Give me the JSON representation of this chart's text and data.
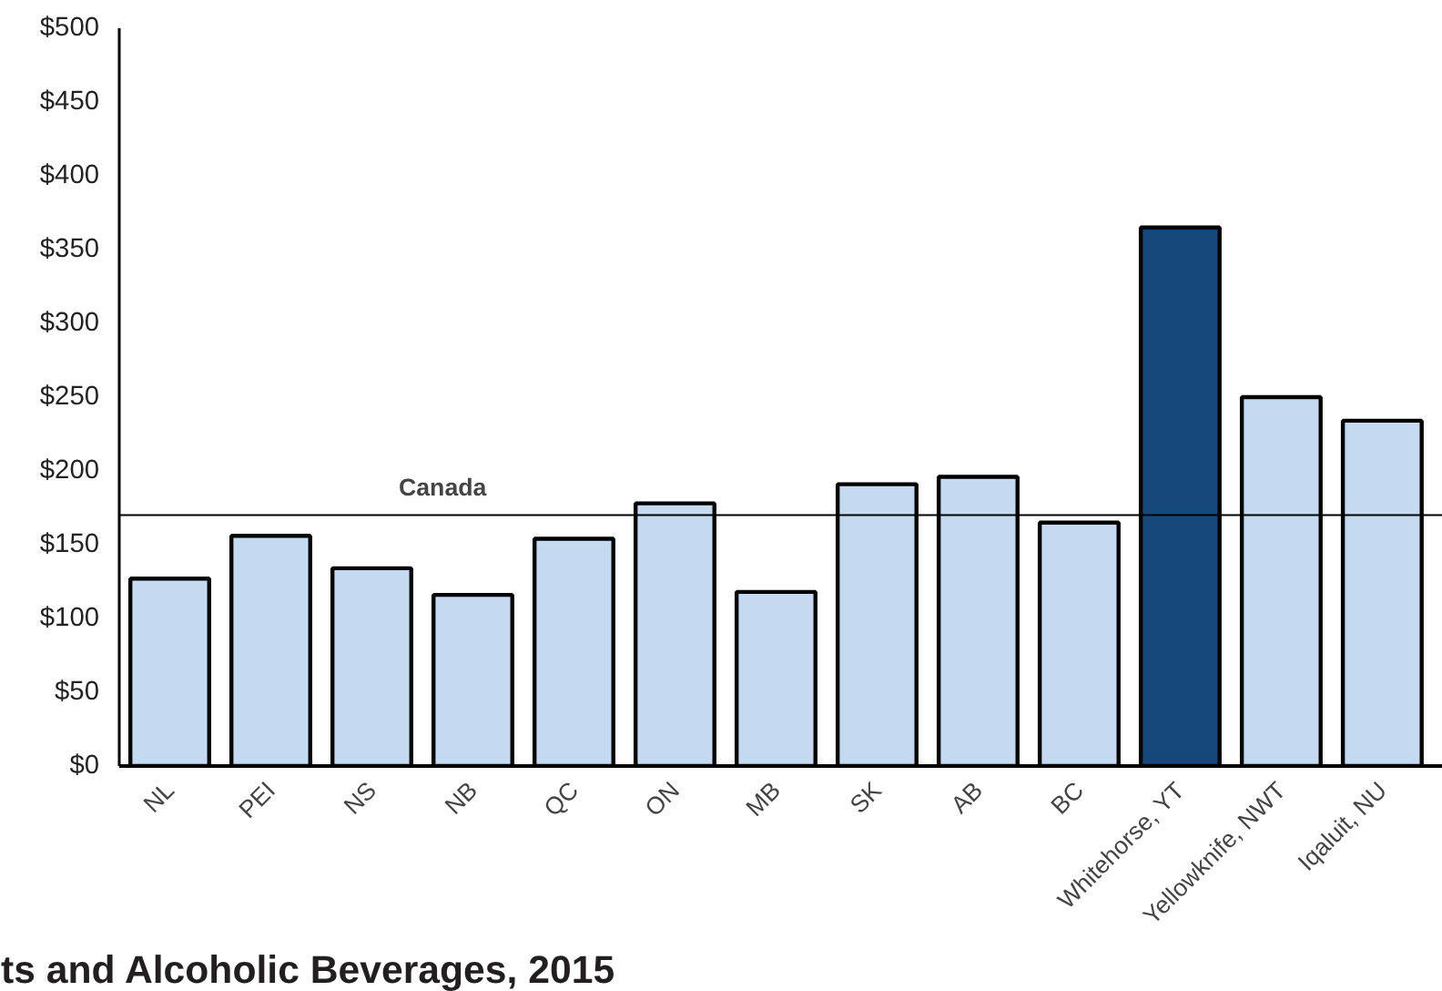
{
  "chart_data": {
    "type": "bar",
    "categories": [
      "NL",
      "PEI",
      "NS",
      "NB",
      "QC",
      "ON",
      "MB",
      "SK",
      "AB",
      "BC",
      "Whitehorse, YT",
      "Yellowknife, NWT",
      "Iqaluit, NU"
    ],
    "values": [
      127,
      156,
      134,
      116,
      154,
      178,
      118,
      191,
      196,
      165,
      365,
      250,
      234
    ],
    "colors": [
      "#c5d9f1",
      "#c5d9f1",
      "#c5d9f1",
      "#c5d9f1",
      "#c5d9f1",
      "#c5d9f1",
      "#c5d9f1",
      "#c5d9f1",
      "#c5d9f1",
      "#c5d9f1",
      "#17487c",
      "#c5d9f1",
      "#c5d9f1"
    ],
    "ylim": [
      0,
      500
    ],
    "yticks": [
      {
        "value": 0,
        "label": "$0"
      },
      {
        "value": 50,
        "label": "$50"
      },
      {
        "value": 100,
        "label": "$100"
      },
      {
        "value": 150,
        "label": "$150"
      },
      {
        "value": 200,
        "label": "$200"
      },
      {
        "value": 250,
        "label": "$250"
      },
      {
        "value": 300,
        "label": "$300"
      },
      {
        "value": 350,
        "label": "$350"
      },
      {
        "value": 400,
        "label": "$400"
      },
      {
        "value": 450,
        "label": "$450"
      },
      {
        "value": 500,
        "label": "$500"
      }
    ],
    "ref_lines": [
      {
        "axis": "y",
        "value": 170,
        "label": "Canada",
        "color": "#000000"
      }
    ],
    "annotations": [
      "ts and Alcoholic Beverages, 2015"
    ],
    "grid": false
  }
}
